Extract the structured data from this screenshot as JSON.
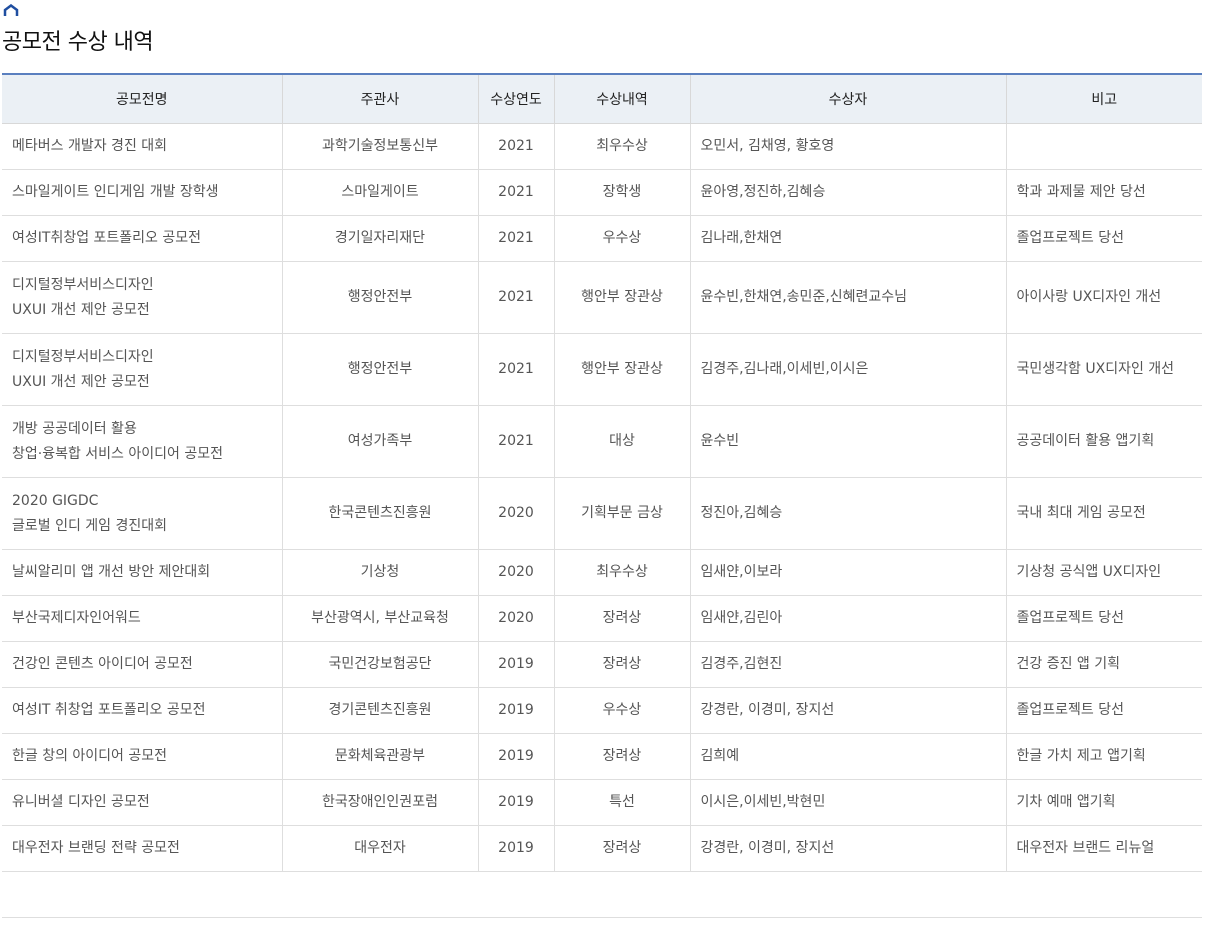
{
  "page": {
    "title": "공모전 수상 내역",
    "home_icon": "home-icon",
    "accent": "#5a7fbf"
  },
  "table": {
    "headers": [
      "공모전명",
      "주관사",
      "수상연도",
      "수상내역",
      "수상자",
      "비고"
    ],
    "rows": [
      {
        "name": [
          "메타버스 개발자 경진 대회"
        ],
        "org": "과학기술정보통신부",
        "year": "2021",
        "award": "최우수상",
        "winners": "오민서, 김채영, 황호영",
        "note": ""
      },
      {
        "name": [
          "스마일게이트 인디게임 개발 장학생"
        ],
        "org": "스마일게이트",
        "year": "2021",
        "award": "장학생",
        "winners": "윤아영,정진하,김혜승",
        "note": "학과 과제물 제안 당선"
      },
      {
        "name": [
          "여성IT취창업 포트폴리오 공모전"
        ],
        "org": "경기일자리재단",
        "year": "2021",
        "award": "우수상",
        "winners": "김나래,한채연",
        "note": "졸업프로젝트 당선"
      },
      {
        "name": [
          "디지털정부서비스디자인",
          "UXUI 개선 제안 공모전"
        ],
        "org": "행정안전부",
        "year": "2021",
        "award": "행안부 장관상",
        "winners": "윤수빈,한채연,송민준,신혜련교수님",
        "note": "아이사랑 UX디자인 개선"
      },
      {
        "name": [
          "디지털정부서비스디자인",
          "UXUI 개선 제안 공모전"
        ],
        "org": "행정안전부",
        "year": "2021",
        "award": "행안부 장관상",
        "winners": "김경주,김나래,이세빈,이시은",
        "note": "국민생각함 UX디자인 개선"
      },
      {
        "name": [
          "개방 공공데이터 활용",
          "창업·융복합 서비스 아이디어 공모전"
        ],
        "org": "여성가족부",
        "year": "2021",
        "award": "대상",
        "winners": "윤수빈",
        "note": "공공데이터 활용 앱기획"
      },
      {
        "name": [
          "2020 GIGDC",
          "글로벌 인디 게임 경진대회"
        ],
        "org": "한국콘텐츠진흥원",
        "year": "2020",
        "award": "기획부문 금상",
        "winners": "정진아,김혜승",
        "note": "국내 최대 게임 공모전"
      },
      {
        "name": [
          "날씨알리미 앱 개선 방안 제안대회"
        ],
        "org": "기상청",
        "year": "2020",
        "award": "최우수상",
        "winners": "임새얀,이보라",
        "note": "기상청 공식앱 UX디자인"
      },
      {
        "name": [
          "부산국제디자인어워드"
        ],
        "org": "부산광역시, 부산교육청",
        "year": "2020",
        "award": "장려상",
        "winners": "임새얀,김린아",
        "note": "졸업프로젝트 당선"
      },
      {
        "name": [
          "건강인 콘텐츠 아이디어 공모전"
        ],
        "org": "국민건강보험공단",
        "year": "2019",
        "award": "장려상",
        "winners": "김경주,김현진",
        "note": "건강 증진 앱 기획"
      },
      {
        "name": [
          "여성IT 취창업 포트폴리오 공모전"
        ],
        "org": "경기콘텐츠진흥원",
        "year": "2019",
        "award": "우수상",
        "winners": "강경란, 이경미, 장지선",
        "note": "졸업프로젝트 당선"
      },
      {
        "name": [
          "한글 창의 아이디어 공모전"
        ],
        "org": "문화체육관광부",
        "year": "2019",
        "award": "장려상",
        "winners": "김희예",
        "note": "한글 가치 제고 앱기획"
      },
      {
        "name": [
          "유니버셜 디자인 공모전"
        ],
        "org": "한국장애인인권포럼",
        "year": "2019",
        "award": "특선",
        "winners": "이시은,이세빈,박현민",
        "note": "기차 예매 앱기획"
      },
      {
        "name": [
          "대우전자 브랜딩 전략 공모전"
        ],
        "org": "대우전자",
        "year": "2019",
        "award": "장려상",
        "winners": "강경란, 이경미, 장지선",
        "note": "대우전자 브랜드 리뉴얼"
      }
    ]
  }
}
